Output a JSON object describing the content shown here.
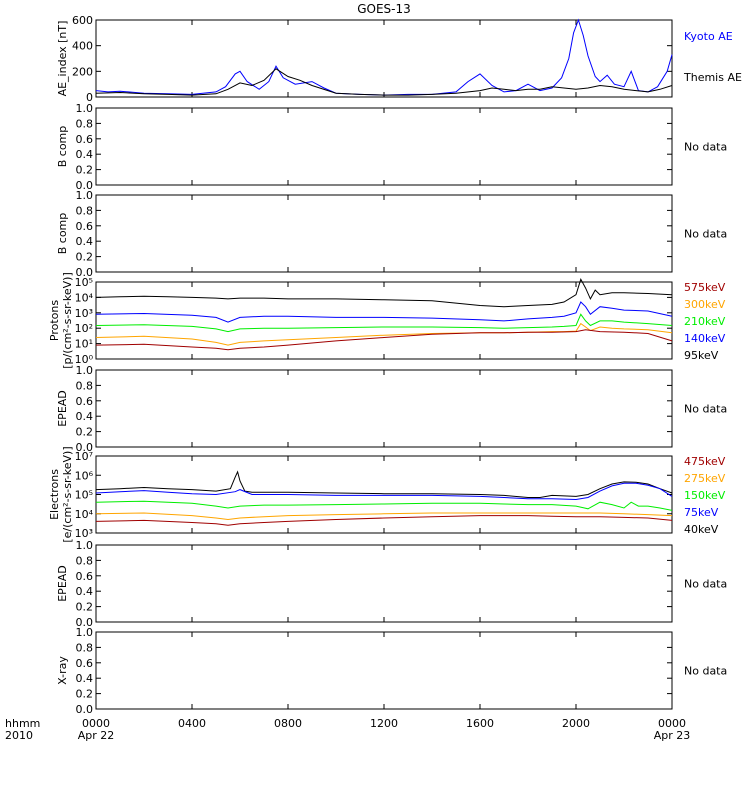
{
  "title": "GOES-13",
  "x_axis": {
    "corner_label_1": "hhmm",
    "corner_label_2": "2010",
    "tick_labels": [
      "0000",
      "0400",
      "0800",
      "1200",
      "1600",
      "2000",
      "0000"
    ],
    "date_labels": [
      "Apr 22",
      "Apr 23"
    ],
    "tick_hours": [
      0,
      4,
      8,
      12,
      16,
      20,
      24
    ],
    "date_label_hours": [
      0,
      24
    ]
  },
  "no_data_text": "No data",
  "colors": {
    "black": "#000000",
    "blue": "#0000ff",
    "green": "#00ee00",
    "orange": "#ffa500",
    "darkred": "#a00000",
    "kyoto_blue": "#0000ff"
  },
  "chart_data": [
    {
      "type": "line",
      "panel": "ae",
      "ylabel": "AE_index [nT]",
      "ylim": [
        0,
        600
      ],
      "yticks": [
        0,
        200,
        400,
        600
      ],
      "series": [
        {
          "name": "Kyoto AE",
          "color": "#0000ff",
          "x": [
            0,
            0.5,
            1,
            2,
            3,
            4,
            5,
            5.4,
            5.8,
            6.0,
            6.3,
            6.8,
            7.2,
            7.5,
            7.8,
            8.3,
            9.0,
            9.5,
            10.0,
            11,
            12,
            13,
            14,
            15,
            15.5,
            16.0,
            16.5,
            17.0,
            17.5,
            18.0,
            18.5,
            19.0,
            19.4,
            19.7,
            19.9,
            20.1,
            20.3,
            20.5,
            20.8,
            21.0,
            21.3,
            21.6,
            22.0,
            22.3,
            22.6,
            23.0,
            23.4,
            23.8,
            24.0
          ],
          "y": [
            50,
            40,
            45,
            30,
            25,
            20,
            40,
            80,
            180,
            200,
            120,
            60,
            120,
            240,
            150,
            100,
            120,
            70,
            30,
            20,
            15,
            20,
            20,
            40,
            120,
            180,
            90,
            40,
            50,
            100,
            50,
            70,
            150,
            300,
            500,
            600,
            480,
            320,
            160,
            120,
            170,
            100,
            80,
            200,
            50,
            40,
            80,
            200,
            330
          ]
        },
        {
          "name": "Themis AE",
          "color": "#000000",
          "x": [
            0,
            1,
            2,
            3,
            4,
            5,
            5.5,
            6.0,
            6.5,
            7.0,
            7.5,
            8.0,
            8.5,
            9.0,
            10.0,
            11,
            12,
            13,
            14,
            15,
            16.0,
            16.5,
            17.0,
            17.5,
            18.0,
            18.5,
            19.0,
            19.5,
            20.0,
            20.5,
            21.0,
            21.5,
            22.0,
            22.5,
            23.0,
            23.5,
            24.0
          ],
          "y": [
            30,
            35,
            25,
            20,
            15,
            25,
            60,
            110,
            90,
            130,
            220,
            160,
            130,
            90,
            30,
            20,
            15,
            15,
            20,
            30,
            50,
            70,
            60,
            50,
            60,
            60,
            80,
            70,
            60,
            70,
            90,
            80,
            60,
            50,
            40,
            60,
            90
          ]
        }
      ]
    },
    {
      "type": "line",
      "panel": "bcomp1",
      "ylabel": "B comp",
      "ylim": [
        0,
        1
      ],
      "yticks": [
        0.0,
        0.2,
        0.4,
        0.6,
        0.8,
        1.0
      ],
      "ytick_labels": [
        "0.0",
        "0.2",
        "0.4",
        "0.6",
        "0.8",
        "1.0"
      ],
      "series": []
    },
    {
      "type": "line",
      "panel": "bcomp2",
      "ylabel": "B comp",
      "ylim": [
        0,
        1
      ],
      "yticks": [
        0.0,
        0.2,
        0.4,
        0.6,
        0.8,
        1.0
      ],
      "ytick_labels": [
        "0.0",
        "0.2",
        "0.4",
        "0.6",
        "0.8",
        "1.0"
      ],
      "series": []
    },
    {
      "type": "line",
      "panel": "protons",
      "ylabel_line1": "Protons",
      "ylabel_line2": "[p/(cm²-s-sr-keV)]",
      "yscale": "log",
      "ylim": [
        1,
        100000
      ],
      "yticks": [
        1,
        10,
        100,
        1000,
        10000,
        100000
      ],
      "ytick_labels": [
        "10⁰",
        "10¹",
        "10²",
        "10³",
        "10⁴",
        "10⁵"
      ],
      "series": [
        {
          "name": "95keV",
          "color": "#000000",
          "x": [
            0,
            1,
            2,
            3,
            4,
            5,
            5.5,
            6,
            7,
            8,
            10,
            12,
            14,
            16,
            17,
            18,
            19,
            19.5,
            20.0,
            20.2,
            20.4,
            20.6,
            20.8,
            21.0,
            21.5,
            22,
            23,
            24
          ],
          "y": [
            10000,
            11000,
            12000,
            11000,
            10000,
            9000,
            8000,
            9000,
            9000,
            8000,
            8000,
            7000,
            6000,
            3000,
            2500,
            3000,
            3500,
            5000,
            15000,
            150000,
            40000,
            8000,
            30000,
            15000,
            20000,
            20000,
            18000,
            15000
          ]
        },
        {
          "name": "140keV",
          "color": "#0000ff",
          "x": [
            0,
            2,
            4,
            5,
            5.5,
            6,
            7,
            8,
            10,
            12,
            14,
            16,
            17,
            18,
            19,
            19.5,
            20.0,
            20.2,
            20.4,
            20.6,
            21.0,
            21.5,
            22,
            23,
            24
          ],
          "y": [
            800,
            900,
            700,
            500,
            250,
            500,
            600,
            600,
            500,
            500,
            450,
            350,
            300,
            400,
            500,
            600,
            1000,
            5000,
            2500,
            800,
            2500,
            2000,
            1500,
            1300,
            600
          ]
        },
        {
          "name": "210keV",
          "color": "#00ee00",
          "x": [
            0,
            2,
            4,
            5,
            5.5,
            6,
            7,
            8,
            10,
            12,
            14,
            16,
            17,
            18,
            19,
            19.5,
            20.0,
            20.2,
            20.4,
            20.6,
            21.0,
            21.5,
            22,
            23,
            24
          ],
          "y": [
            150,
            170,
            130,
            90,
            60,
            90,
            100,
            100,
            110,
            120,
            120,
            110,
            100,
            110,
            120,
            130,
            150,
            800,
            300,
            150,
            300,
            300,
            250,
            200,
            150
          ]
        },
        {
          "name": "300keV",
          "color": "#ffa500",
          "x": [
            0,
            2,
            4,
            5,
            5.5,
            6,
            7,
            8,
            10,
            12,
            14,
            16,
            17,
            18,
            19,
            19.5,
            20.0,
            20.2,
            20.4,
            20.6,
            21.0,
            21.5,
            22,
            23,
            24
          ],
          "y": [
            25,
            30,
            20,
            12,
            8,
            12,
            15,
            18,
            25,
            35,
            45,
            50,
            50,
            55,
            60,
            60,
            65,
            200,
            120,
            70,
            120,
            100,
            90,
            80,
            50
          ]
        },
        {
          "name": "575keV",
          "color": "#a00000",
          "x": [
            0,
            2,
            4,
            5,
            5.5,
            6,
            7,
            8,
            10,
            12,
            14,
            16,
            17,
            18,
            19,
            20,
            20.4,
            21,
            22,
            23,
            24
          ],
          "y": [
            8,
            9,
            6,
            5,
            4,
            5,
            6,
            8,
            15,
            25,
            40,
            50,
            50,
            55,
            55,
            60,
            80,
            60,
            55,
            45,
            15
          ]
        }
      ]
    },
    {
      "type": "line",
      "panel": "epead1",
      "ylabel": "EPEAD",
      "ylim": [
        0,
        1
      ],
      "yticks": [
        0.0,
        0.2,
        0.4,
        0.6,
        0.8,
        1.0
      ],
      "ytick_labels": [
        "0.0",
        "0.2",
        "0.4",
        "0.6",
        "0.8",
        "1.0"
      ],
      "series": []
    },
    {
      "type": "line",
      "panel": "electrons",
      "ylabel_line1": "Electrons",
      "ylabel_line2": "[e/(cm²-s-sr-keV)]",
      "yscale": "log",
      "ylim": [
        1000,
        10000000
      ],
      "yticks": [
        1000,
        10000,
        100000,
        1000000,
        10000000
      ],
      "ytick_labels": [
        "10³",
        "10⁴",
        "10⁵",
        "10⁶",
        "10⁷"
      ],
      "series": [
        {
          "name": "40keV",
          "color": "#000000",
          "x": [
            0,
            1,
            2,
            3,
            4,
            5,
            5.6,
            5.8,
            5.9,
            6.0,
            6.2,
            6.5,
            7,
            8,
            10,
            12,
            14,
            16,
            17,
            18,
            18.5,
            19,
            20,
            20.5,
            21,
            21.5,
            22,
            22.5,
            23,
            23.5,
            24
          ],
          "y": [
            180000,
            200000,
            230000,
            200000,
            180000,
            150000,
            200000,
            800000,
            1500000,
            500000,
            150000,
            130000,
            130000,
            130000,
            120000,
            110000,
            110000,
            100000,
            90000,
            70000,
            70000,
            90000,
            80000,
            100000,
            200000,
            350000,
            450000,
            430000,
            350000,
            200000,
            120000
          ]
        },
        {
          "name": "75keV",
          "color": "#0000ff",
          "x": [
            0,
            1,
            2,
            3,
            4,
            5,
            5.8,
            6.0,
            6.5,
            7,
            8,
            10,
            12,
            14,
            16,
            17,
            18,
            19,
            20,
            20.5,
            21,
            21.5,
            22,
            22.5,
            23,
            23.5,
            24
          ],
          "y": [
            120000,
            140000,
            160000,
            130000,
            110000,
            100000,
            140000,
            180000,
            100000,
            100000,
            100000,
            90000,
            90000,
            90000,
            80000,
            70000,
            60000,
            60000,
            55000,
            70000,
            150000,
            280000,
            380000,
            380000,
            300000,
            200000,
            80000
          ]
        },
        {
          "name": "150keV",
          "color": "#00ee00",
          "x": [
            0,
            2,
            4,
            5,
            5.5,
            6,
            7,
            8,
            10,
            12,
            14,
            16,
            17,
            18,
            19,
            20,
            20.5,
            21,
            21.5,
            22,
            22.3,
            22.6,
            23,
            23.5,
            24
          ],
          "y": [
            40000,
            45000,
            35000,
            25000,
            20000,
            25000,
            28000,
            28000,
            30000,
            32000,
            35000,
            35000,
            32000,
            30000,
            30000,
            25000,
            18000,
            40000,
            30000,
            20000,
            40000,
            25000,
            25000,
            20000,
            15000
          ]
        },
        {
          "name": "275keV",
          "color": "#ffa500",
          "x": [
            0,
            2,
            4,
            5,
            5.5,
            6,
            7,
            8,
            10,
            12,
            14,
            16,
            17,
            18,
            19,
            20,
            21,
            22,
            23,
            24
          ],
          "y": [
            10000,
            11000,
            8000,
            6000,
            5000,
            6000,
            7000,
            8000,
            9000,
            10000,
            11000,
            11000,
            11000,
            11000,
            11000,
            11000,
            11000,
            10000,
            9000,
            8000
          ]
        },
        {
          "name": "475keV",
          "color": "#a00000",
          "x": [
            0,
            2,
            4,
            5,
            5.5,
            6,
            7,
            8,
            10,
            12,
            14,
            16,
            17,
            18,
            19,
            20,
            21,
            22,
            23,
            24
          ],
          "y": [
            4000,
            4500,
            3500,
            3000,
            2500,
            3000,
            3500,
            4000,
            5000,
            6000,
            7000,
            8000,
            8000,
            8000,
            7500,
            7000,
            7000,
            6500,
            6000,
            4500
          ]
        }
      ]
    },
    {
      "type": "line",
      "panel": "epead2",
      "ylabel": "EPEAD",
      "ylim": [
        0,
        1
      ],
      "yticks": [
        0.0,
        0.2,
        0.4,
        0.6,
        0.8,
        1.0
      ],
      "ytick_labels": [
        "0.0",
        "0.2",
        "0.4",
        "0.6",
        "0.8",
        "1.0"
      ],
      "series": []
    },
    {
      "type": "line",
      "panel": "xray",
      "ylabel": "X-ray",
      "ylim": [
        0,
        1
      ],
      "yticks": [
        0.0,
        0.2,
        0.4,
        0.6,
        0.8,
        1.0
      ],
      "ytick_labels": [
        "0.0",
        "0.2",
        "0.4",
        "0.6",
        "0.8",
        "1.0"
      ],
      "series": []
    }
  ]
}
